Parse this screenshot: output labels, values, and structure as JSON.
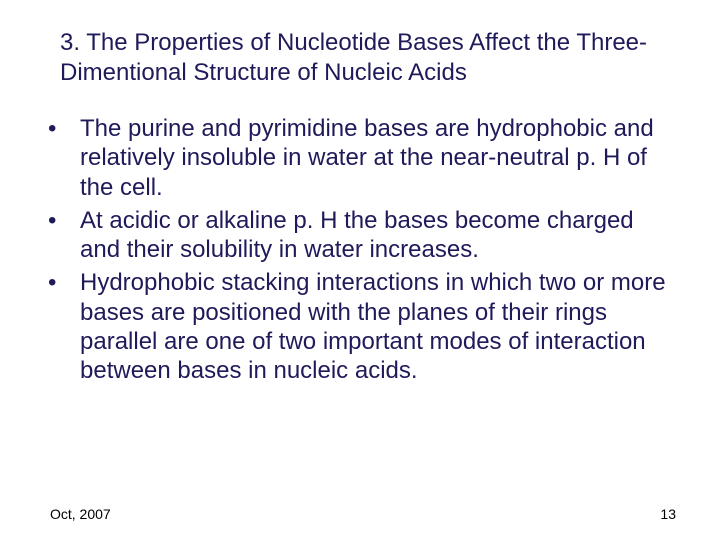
{
  "slide": {
    "title": "3. The Properties of Nucleotide Bases Affect the Three-Dimentional Structure of Nucleic Acids",
    "bullets": [
      "The purine and pyrimidine bases are hydrophobic and relatively insoluble in water at the near-neutral p. H of the cell.",
      "At acidic or alkaline p. H the bases become charged and their solubility in water increases.",
      "Hydrophobic stacking interactions in which two or more bases are positioned with the planes of their rings parallel are one of two important modes of interaction between bases in nucleic acids."
    ],
    "footer": {
      "date": "Oct, 2007",
      "page": "13"
    },
    "colors": {
      "text": "#1f1a5a",
      "background": "#ffffff",
      "footer_text": "#000000"
    },
    "typography": {
      "title_fontsize": 24,
      "body_fontsize": 24,
      "footer_fontsize": 14,
      "font_family": "Arial"
    }
  }
}
